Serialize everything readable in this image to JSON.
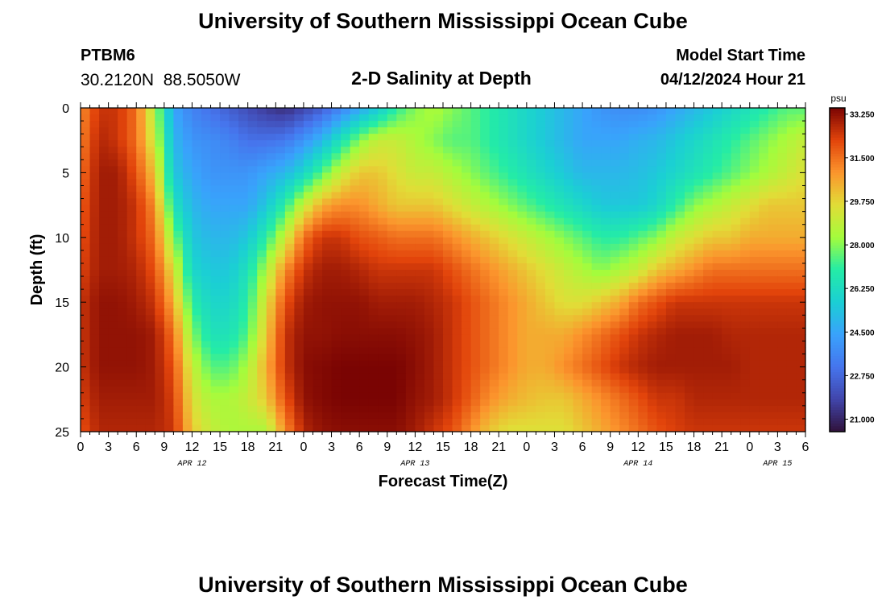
{
  "header": {
    "title": "University of Southern Mississippi Ocean Cube",
    "station_id": "PTBM6",
    "station_coords": "30.2120N  88.5050W",
    "plot_title": "2-D Salinity at Depth",
    "model_start_label": "Model Start Time",
    "model_start_value": "04/12/2024 Hour 21"
  },
  "footer": {
    "title": "University of Southern Mississippi Ocean Cube"
  },
  "chart_data": {
    "type": "heatmap",
    "title": "2-D Salinity at Depth",
    "xlabel": "Forecast Time(Z)",
    "ylabel": "Depth (ft)",
    "x_hours_start": 0,
    "x_hours_end": 78,
    "x_ticks": [
      "0",
      "3",
      "6",
      "9",
      "12",
      "15",
      "18",
      "21",
      "0",
      "3",
      "6",
      "9",
      "12",
      "15",
      "18",
      "21",
      "0",
      "3",
      "6",
      "9",
      "12",
      "15",
      "18",
      "21",
      "0",
      "3",
      "6"
    ],
    "date_labels": [
      {
        "label": "APR 12",
        "hour": 12
      },
      {
        "label": "APR 13",
        "hour": 36
      },
      {
        "label": "APR 14",
        "hour": 60
      },
      {
        "label": "APR 15",
        "hour": 75
      }
    ],
    "ylim": [
      0,
      25
    ],
    "y_ticks": [
      0,
      5,
      10,
      15,
      20,
      25
    ],
    "colorbar": {
      "unit": "psu",
      "min": 20.5,
      "max": 33.5,
      "ticks": [
        "33.250",
        "31.500",
        "29.750",
        "28.000",
        "26.250",
        "24.500",
        "22.750",
        "21.000"
      ]
    },
    "grid_hours": [
      0,
      2,
      4,
      6,
      8,
      10,
      12,
      14,
      16,
      18,
      20,
      22,
      24,
      26,
      28,
      30,
      32,
      34,
      36,
      38,
      40,
      42,
      44,
      46,
      48,
      50,
      52,
      54,
      56,
      58,
      60,
      62,
      64,
      66,
      68,
      70,
      72,
      74,
      76,
      78
    ],
    "grid_depths": [
      0,
      2.5,
      5,
      7.5,
      10,
      12.5,
      15,
      17.5,
      20,
      22.5,
      25
    ],
    "salinity": [
      [
        31.0,
        32.5,
        32.5,
        31.5,
        28.5,
        24.5,
        23.5,
        23.0,
        22.5,
        22.0,
        21.5,
        21.2,
        21.8,
        22.5,
        23.5,
        24.5,
        25.5,
        27.0,
        28.0,
        28.5,
        28.0,
        27.5,
        27.0,
        26.5,
        26.0,
        25.5,
        25.0,
        24.5,
        24.0,
        23.8,
        23.8,
        24.0,
        24.5,
        25.0,
        25.5,
        26.0,
        26.5,
        27.0,
        27.5,
        27.5
      ],
      [
        31.2,
        32.8,
        32.5,
        31.5,
        29.0,
        25.0,
        24.0,
        23.8,
        23.5,
        23.0,
        23.0,
        23.2,
        24.0,
        25.0,
        26.5,
        28.0,
        29.0,
        29.0,
        28.5,
        28.0,
        27.5,
        27.5,
        27.0,
        26.5,
        26.0,
        25.5,
        25.0,
        24.5,
        24.5,
        24.5,
        24.8,
        25.0,
        25.5,
        26.0,
        26.5,
        27.0,
        27.5,
        28.0,
        28.5,
        29.0
      ],
      [
        31.5,
        33.0,
        33.0,
        32.0,
        30.0,
        25.5,
        24.5,
        24.0,
        24.0,
        24.0,
        24.5,
        25.0,
        26.0,
        27.5,
        29.0,
        30.0,
        30.0,
        29.5,
        29.0,
        29.0,
        28.5,
        28.0,
        27.5,
        27.0,
        26.5,
        26.0,
        25.5,
        25.0,
        25.0,
        25.0,
        25.2,
        25.5,
        26.0,
        26.5,
        27.0,
        27.5,
        28.0,
        28.5,
        29.0,
        29.5
      ],
      [
        31.8,
        33.0,
        33.0,
        32.5,
        31.0,
        26.5,
        25.0,
        24.5,
        24.5,
        24.5,
        25.5,
        27.0,
        29.0,
        30.5,
        31.0,
        31.0,
        30.5,
        30.0,
        30.0,
        30.0,
        29.5,
        29.0,
        28.5,
        28.0,
        27.5,
        27.0,
        26.5,
        26.0,
        25.5,
        25.5,
        25.5,
        26.0,
        27.0,
        28.0,
        28.5,
        29.0,
        29.5,
        30.0,
        30.0,
        30.0
      ],
      [
        32.0,
        33.0,
        33.0,
        32.5,
        31.5,
        28.0,
        25.5,
        25.0,
        25.0,
        25.5,
        27.0,
        29.0,
        31.5,
        32.5,
        32.5,
        32.0,
        31.8,
        31.5,
        31.5,
        31.5,
        31.0,
        30.5,
        30.0,
        29.5,
        29.0,
        28.5,
        28.0,
        27.5,
        27.0,
        27.0,
        27.5,
        28.0,
        29.0,
        29.5,
        30.0,
        30.0,
        30.5,
        30.5,
        30.5,
        30.5
      ],
      [
        32.2,
        33.0,
        33.0,
        32.8,
        32.0,
        29.5,
        26.0,
        25.5,
        25.5,
        26.5,
        28.5,
        31.0,
        32.5,
        33.0,
        33.0,
        32.8,
        32.5,
        32.5,
        32.5,
        32.5,
        32.0,
        31.5,
        31.0,
        30.5,
        30.0,
        29.5,
        29.0,
        28.5,
        28.0,
        28.5,
        29.0,
        30.0,
        30.5,
        31.0,
        31.5,
        31.5,
        31.5,
        31.5,
        31.5,
        31.5
      ],
      [
        32.5,
        33.2,
        33.2,
        33.0,
        32.5,
        30.5,
        27.0,
        26.0,
        26.0,
        27.0,
        29.5,
        32.0,
        33.0,
        33.2,
        33.2,
        33.2,
        33.0,
        33.0,
        33.0,
        32.8,
        32.5,
        32.0,
        31.5,
        31.0,
        30.5,
        30.0,
        29.5,
        29.5,
        30.0,
        30.5,
        31.5,
        32.0,
        32.5,
        32.5,
        32.5,
        32.5,
        32.5,
        32.5,
        32.5,
        32.5
      ],
      [
        32.5,
        33.2,
        33.2,
        33.2,
        33.0,
        31.5,
        28.0,
        26.5,
        26.5,
        27.5,
        30.0,
        32.5,
        33.2,
        33.2,
        33.3,
        33.3,
        33.3,
        33.3,
        33.2,
        33.0,
        32.5,
        32.0,
        31.5,
        31.0,
        30.5,
        30.5,
        30.5,
        31.0,
        31.5,
        32.0,
        32.5,
        32.8,
        33.0,
        33.0,
        33.0,
        32.8,
        32.8,
        32.8,
        32.8,
        32.8
      ],
      [
        32.5,
        33.2,
        33.2,
        33.2,
        33.0,
        32.0,
        29.0,
        27.5,
        27.5,
        28.5,
        30.5,
        32.5,
        33.3,
        33.4,
        33.5,
        33.5,
        33.5,
        33.5,
        33.3,
        33.0,
        32.5,
        32.0,
        31.5,
        31.0,
        30.5,
        30.5,
        31.0,
        31.5,
        32.0,
        32.5,
        32.8,
        33.0,
        33.0,
        33.0,
        33.0,
        33.0,
        32.8,
        32.8,
        32.8,
        32.8
      ],
      [
        32.3,
        33.0,
        33.0,
        33.0,
        33.0,
        32.3,
        29.5,
        28.5,
        28.5,
        29.0,
        30.0,
        32.0,
        33.2,
        33.4,
        33.5,
        33.5,
        33.5,
        33.5,
        33.2,
        33.0,
        32.5,
        31.8,
        31.0,
        30.5,
        30.2,
        30.0,
        30.0,
        30.5,
        31.0,
        31.5,
        32.0,
        32.5,
        32.5,
        32.8,
        32.8,
        32.8,
        32.8,
        32.8,
        32.8,
        32.8
      ],
      [
        32.0,
        32.8,
        32.8,
        32.8,
        32.8,
        32.5,
        30.0,
        29.0,
        28.5,
        28.5,
        28.5,
        31.0,
        32.8,
        33.2,
        33.3,
        33.3,
        33.3,
        33.3,
        33.0,
        32.5,
        32.0,
        31.0,
        30.0,
        29.5,
        29.5,
        29.5,
        29.5,
        30.0,
        30.5,
        31.0,
        31.5,
        32.0,
        32.3,
        32.5,
        32.5,
        32.5,
        32.5,
        32.5,
        32.5,
        32.5
      ]
    ]
  }
}
